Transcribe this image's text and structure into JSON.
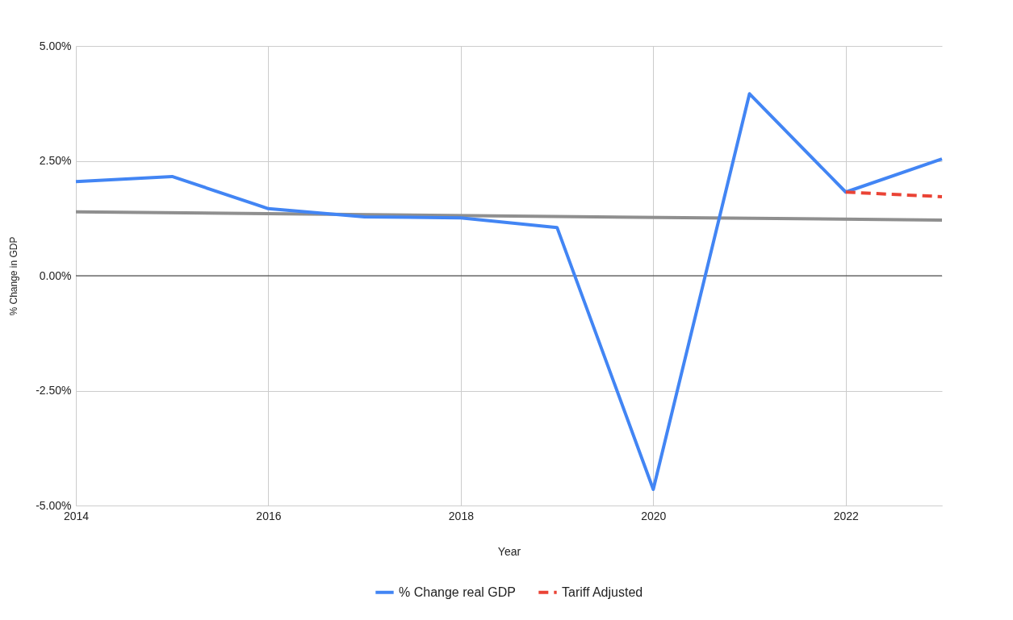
{
  "chart_data": {
    "type": "line",
    "xlabel": "Year",
    "ylabel": "% Change in GDP",
    "xlim": [
      2014,
      2023
    ],
    "xticks": [
      2014,
      2016,
      2018,
      2020,
      2022
    ],
    "ylim": [
      -5,
      5
    ],
    "yticks": [
      {
        "value": -5,
        "label": "-5.00%"
      },
      {
        "value": -2.5,
        "label": "-2.50%"
      },
      {
        "value": 0,
        "label": "0.00%"
      },
      {
        "value": 2.5,
        "label": "2.50%"
      },
      {
        "value": 5,
        "label": "5.00%"
      }
    ],
    "grid": true,
    "legend": "bottom",
    "marker": "none",
    "ref_lines": [
      {
        "axis": "y",
        "value": 0,
        "color": "#333333"
      }
    ],
    "series": [
      {
        "name": "% Change real GDP",
        "color": "#4285f4",
        "line_style": "solid",
        "x": [
          2014,
          2015,
          2016,
          2017,
          2018,
          2019,
          2020,
          2021,
          2022,
          2023
        ],
        "values": [
          2.05,
          2.16,
          1.46,
          1.28,
          1.26,
          1.05,
          -4.65,
          3.96,
          1.82,
          2.54
        ]
      },
      {
        "name": "Tariff Adjusted",
        "color": "#ea4335",
        "line_style": "dashed",
        "x": [
          2022,
          2023
        ],
        "values": [
          1.82,
          1.72
        ]
      },
      {
        "type": "line",
        "color": "#8f8f8f",
        "line_style": "solid",
        "x": [
          2014,
          2023
        ],
        "values": [
          1.39,
          1.21
        ]
      }
    ]
  }
}
